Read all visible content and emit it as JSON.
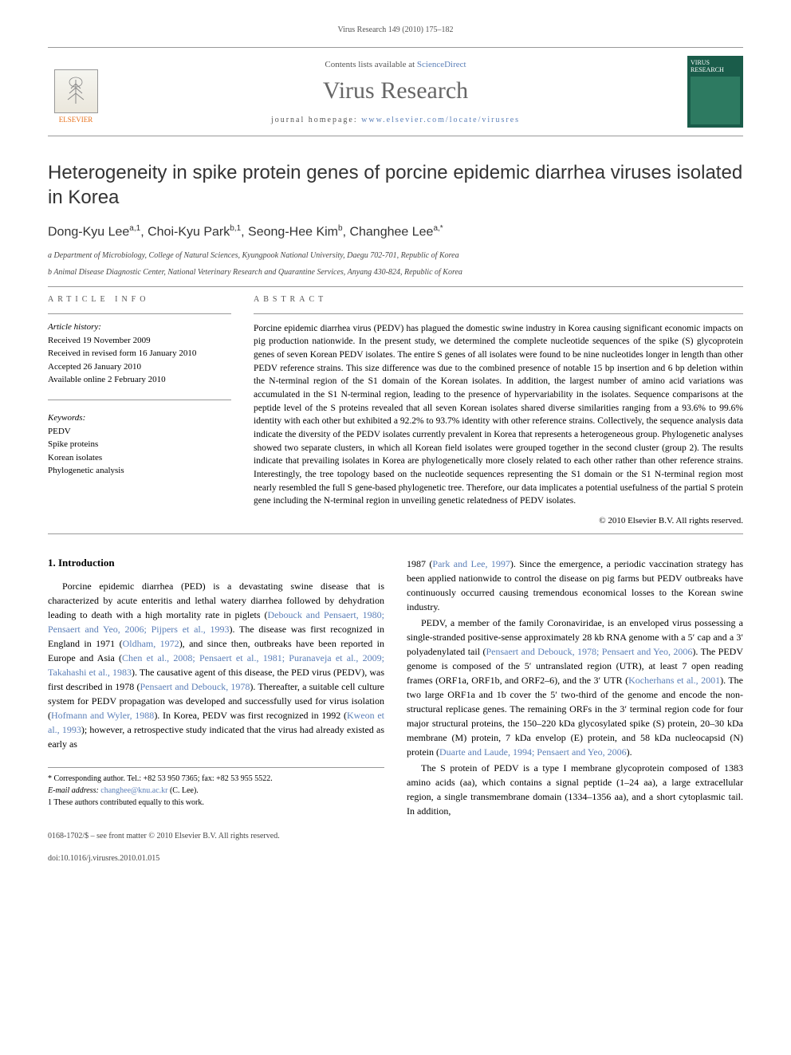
{
  "running_header": "Virus Research 149 (2010) 175–182",
  "topbar": {
    "sciencedirect_prefix": "Contents lists available at ",
    "sciencedirect_label": "ScienceDirect",
    "journal_name_display": "Virus Research",
    "homepage_prefix": "journal homepage: ",
    "homepage_url": "www.elsevier.com/locate/virusres",
    "publisher": "ELSEVIER",
    "cover_label": "VIRUS RESEARCH"
  },
  "article_title": "Heterogeneity in spike protein genes of porcine epidemic diarrhea viruses isolated in Korea",
  "authors_html": "Dong-Kyu Lee|a,1|, Choi-Kyu Park|b,1|, Seong-Hee Kim|b|, Changhee Lee|a,*|",
  "affiliations": {
    "a": "a Department of Microbiology, College of Natural Sciences, Kyungpook National University, Daegu 702-701, Republic of Korea",
    "b": "b Animal Disease Diagnostic Center, National Veterinary Research and Quarantine Services, Anyang 430-824, Republic of Korea"
  },
  "info_label": "ARTICLE INFO",
  "abstract_label": "ABSTRACT",
  "history": {
    "head": "Article history:",
    "received": "Received 19 November 2009",
    "revised": "Received in revised form 16 January 2010",
    "accepted": "Accepted 26 January 2010",
    "online": "Available online 2 February 2010"
  },
  "keywords": {
    "head": "Keywords:",
    "items": [
      "PEDV",
      "Spike proteins",
      "Korean isolates",
      "Phylogenetic analysis"
    ]
  },
  "abstract": "Porcine epidemic diarrhea virus (PEDV) has plagued the domestic swine industry in Korea causing significant economic impacts on pig production nationwide. In the present study, we determined the complete nucleotide sequences of the spike (S) glycoprotein genes of seven Korean PEDV isolates. The entire S genes of all isolates were found to be nine nucleotides longer in length than other PEDV reference strains. This size difference was due to the combined presence of notable 15 bp insertion and 6 bp deletion within the N-terminal region of the S1 domain of the Korean isolates. In addition, the largest number of amino acid variations was accumulated in the S1 N-terminal region, leading to the presence of hypervariability in the isolates. Sequence comparisons at the peptide level of the S proteins revealed that all seven Korean isolates shared diverse similarities ranging from a 93.6% to 99.6% identity with each other but exhibited a 92.2% to 93.7% identity with other reference strains. Collectively, the sequence analysis data indicate the diversity of the PEDV isolates currently prevalent in Korea that represents a heterogeneous group. Phylogenetic analyses showed two separate clusters, in which all Korean field isolates were grouped together in the second cluster (group 2). The results indicate that prevailing isolates in Korea are phylogenetically more closely related to each other rather than other reference strains. Interestingly, the tree topology based on the nucleotide sequences representing the S1 domain or the S1 N-terminal region most nearly resembled the full S gene-based phylogenetic tree. Therefore, our data implicates a potential usefulness of the partial S protein gene including the N-terminal region in unveiling genetic relatedness of PEDV isolates.",
  "copyright": "© 2010 Elsevier B.V. All rights reserved.",
  "section1_heading": "1. Introduction",
  "body": {
    "p1a": "Porcine epidemic diarrhea (PED) is a devastating swine disease that is characterized by acute enteritis and lethal watery diarrhea followed by dehydration leading to death with a high mortality rate in piglets (",
    "c1": "Debouck and Pensaert, 1980; Pensaert and Yeo, 2006; Pijpers et al., 1993",
    "p1b": "). The disease was first recognized in England in 1971 (",
    "c2": "Oldham, 1972",
    "p1c": "), and since then, outbreaks have been reported in Europe and Asia (",
    "c3": "Chen et al., 2008; Pensaert et al., 1981; Puranaveja et al., 2009; Takahashi et al., 1983",
    "p1d": "). The causative agent of this disease, the PED virus (PEDV), was first described in 1978 (",
    "c4": "Pensaert and Debouck, 1978",
    "p1e": "). Thereafter, a suitable cell culture system for PEDV propagation was developed and successfully used for virus isolation (",
    "c5": "Hofmann and Wyler, 1988",
    "p1f": "). In Korea, PEDV was first recognized in 1992 (",
    "c6": "Kweon et al., 1993",
    "p1g": "); however, a retrospective study indicated that the virus had already existed as early as",
    "p2a": "1987 (",
    "c7": "Park and Lee, 1997",
    "p2b": "). Since the emergence, a periodic vaccination strategy has been applied nationwide to control the disease on pig farms but PEDV outbreaks have continuously occurred causing tremendous economical losses to the Korean swine industry.",
    "p3a": "PEDV, a member of the family Coronaviridae, is an enveloped virus possessing a single-stranded positive-sense approximately 28 kb RNA genome with a 5′ cap and a 3′ polyadenylated tail (",
    "c8": "Pensaert and Debouck, 1978; Pensaert and Yeo, 2006",
    "p3b": "). The PEDV genome is composed of the 5′ untranslated region (UTR), at least 7 open reading frames (ORF1a, ORF1b, and ORF2–6), and the 3′ UTR (",
    "c9": "Kocherhans et al., 2001",
    "p3c": "). The two large ORF1a and 1b cover the 5′ two-third of the genome and encode the non-structural replicase genes. The remaining ORFs in the 3′ terminal region code for four major structural proteins, the 150–220 kDa glycosylated spike (S) protein, 20–30 kDa membrane (M) protein, 7 kDa envelop (E) protein, and 58 kDa nucleocapsid (N) protein (",
    "c10": "Duarte and Laude, 1994; Pensaert and Yeo, 2006",
    "p3d": ").",
    "p4": "The S protein of PEDV is a type I membrane glycoprotein composed of 1383 amino acids (aa), which contains a signal peptide (1–24 aa), a large extracellular region, a single transmembrane domain (1334–1356 aa), and a short cytoplasmic tail. In addition,"
  },
  "footnotes": {
    "corr": "* Corresponding author. Tel.: +82 53 950 7365; fax: +82 53 955 5522.",
    "email_label": "E-mail address: ",
    "email": "changhee@knu.ac.kr",
    "email_suffix": " (C. Lee).",
    "equal": "1 These authors contributed equally to this work."
  },
  "footer": {
    "line1": "0168-1702/$ – see front matter © 2010 Elsevier B.V. All rights reserved.",
    "line2": "doi:10.1016/j.virusres.2010.01.015"
  },
  "colors": {
    "link": "#5b7fb8",
    "publisher": "#e8711c",
    "cover_bg": "#1a5c4a",
    "text": "#000000",
    "muted": "#555555",
    "rule": "#999999"
  }
}
